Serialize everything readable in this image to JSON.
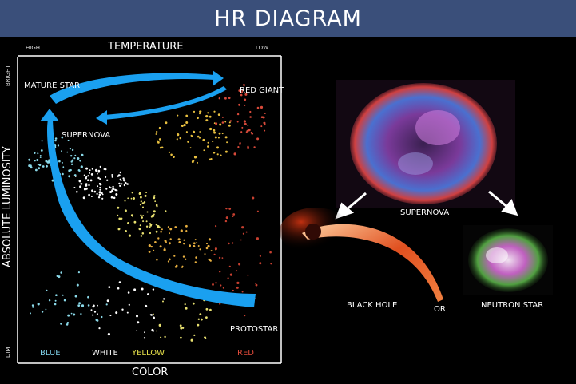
{
  "title": "HR DIAGRAM",
  "hr": {
    "temp_label": "TEMPERATURE",
    "temp_high": "HIGH",
    "temp_low": "LOW",
    "lum_label": "ABSOLUTE LUMINOSITY",
    "lum_bright": "BRIGHT",
    "lum_dim": "DIM",
    "color_label": "COLOR",
    "colors": [
      {
        "text": "BLUE",
        "color": "#7fd0e8"
      },
      {
        "text": "WHITE",
        "color": "#ffffff"
      },
      {
        "text": "YELLOW",
        "color": "#e6e04a"
      },
      {
        "text": "RED",
        "color": "#e04a3a"
      }
    ],
    "stages": {
      "mature_star": "MATURE STAR",
      "red_giant": "RED GIANT",
      "supernova": "SUPERNOVA",
      "protostar": "PROTOSTAR"
    },
    "arrow_color": "#1aa0f0"
  },
  "right": {
    "supernova": "SUPERNOVA",
    "black_hole": "BLACK HOLE",
    "or": "OR",
    "neutron_star": "NEUTRON STAR"
  }
}
